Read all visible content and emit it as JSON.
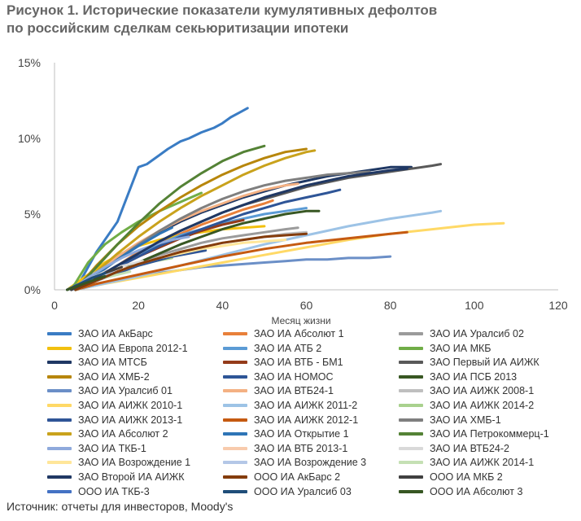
{
  "header": {
    "title_line1": "Рисунок 1. Исторические показатели кумулятивных дефолтов",
    "title_line2": "по российским сделкам секьюритизации ипотеки"
  },
  "footer": {
    "source": "Источник: отчеты для инвесторов, Moody's"
  },
  "chart_data": {
    "type": "line",
    "xlabel": "Месяц жизни",
    "ylabel": "",
    "xlim": [
      0,
      120
    ],
    "ylim": [
      0,
      0.15
    ],
    "xticks": [
      0,
      20,
      40,
      60,
      80,
      100,
      120
    ],
    "xtick_labels": [
      "0",
      "20",
      "40",
      "60",
      "80",
      "100",
      "120"
    ],
    "yticks": [
      0,
      0.05,
      0.1,
      0.15
    ],
    "ytick_labels": [
      "0%",
      "5%",
      "10%",
      "15%"
    ],
    "grid": false,
    "legend_position": "bottom",
    "series": [
      {
        "name": "ЗАО ИА АкБарс",
        "color": "#3a7cc4",
        "x": [
          5,
          10,
          15,
          20,
          22,
          25,
          27,
          30,
          32,
          35,
          38,
          40,
          42,
          44,
          46
        ],
        "y": [
          0,
          0.025,
          0.045,
          0.081,
          0.083,
          0.089,
          0.093,
          0.098,
          0.1,
          0.104,
          0.107,
          0.11,
          0.114,
          0.117,
          0.12
        ]
      },
      {
        "name": "ЗАО ИА Абсолют 1",
        "color": "#e8803a",
        "x": [
          5,
          10,
          15,
          20,
          25,
          30,
          35,
          40,
          45,
          50,
          52
        ],
        "y": [
          0,
          0.008,
          0.016,
          0.025,
          0.031,
          0.037,
          0.043,
          0.048,
          0.053,
          0.057,
          0.059
        ]
      },
      {
        "name": "ЗАО ИА Уралсиб 02",
        "color": "#9b9b9b",
        "x": [
          5,
          10,
          15,
          20,
          25,
          30,
          35,
          40,
          45,
          50,
          55,
          58
        ],
        "y": [
          0,
          0.006,
          0.012,
          0.018,
          0.023,
          0.027,
          0.031,
          0.034,
          0.036,
          0.038,
          0.04,
          0.041
        ]
      },
      {
        "name": "ЗАО ИА Европа 2012-1",
        "color": "#f2c00e",
        "x": [
          3,
          8,
          12,
          16,
          20,
          25,
          30,
          35,
          40,
          45,
          50
        ],
        "y": [
          0,
          0.01,
          0.018,
          0.024,
          0.029,
          0.033,
          0.036,
          0.038,
          0.04,
          0.041,
          0.042
        ]
      },
      {
        "name": "ЗАО ИА АТБ 2",
        "color": "#5b9bd5",
        "x": [
          4,
          10,
          15,
          20,
          25,
          30,
          35,
          40,
          45,
          50,
          55,
          60
        ],
        "y": [
          0,
          0.008,
          0.016,
          0.024,
          0.03,
          0.036,
          0.04,
          0.044,
          0.047,
          0.05,
          0.052,
          0.054
        ]
      },
      {
        "name": "ЗАО ИА МКБ",
        "color": "#70ad47",
        "x": [
          4,
          8,
          12,
          16,
          20,
          25,
          30,
          35
        ],
        "y": [
          0,
          0.018,
          0.03,
          0.038,
          0.045,
          0.052,
          0.058,
          0.064
        ]
      },
      {
        "name": "ЗАО ИА МТСБ",
        "color": "#1f3864",
        "x": [
          5,
          10,
          15,
          20,
          25,
          30,
          35,
          40,
          45,
          50,
          55,
          60,
          65,
          70,
          75,
          80,
          85
        ],
        "y": [
          0,
          0.01,
          0.02,
          0.03,
          0.038,
          0.045,
          0.051,
          0.056,
          0.061,
          0.065,
          0.069,
          0.072,
          0.075,
          0.077,
          0.079,
          0.081,
          0.081
        ]
      },
      {
        "name": "ЗАО ИА ВТБ - БМ1",
        "color": "#943b1a",
        "x": [
          5,
          10,
          15,
          20,
          25,
          30,
          35,
          40,
          45
        ],
        "y": [
          0,
          0.008,
          0.015,
          0.022,
          0.028,
          0.034,
          0.039,
          0.043,
          0.046
        ]
      },
      {
        "name": "ЗАО Первый ИА АИЖК",
        "color": "#595959",
        "x": [
          5,
          10,
          15,
          20,
          25,
          30,
          35,
          40,
          45,
          50,
          55,
          60,
          65,
          70,
          75,
          80,
          85,
          90,
          92
        ],
        "y": [
          0,
          0.008,
          0.016,
          0.024,
          0.032,
          0.039,
          0.045,
          0.051,
          0.056,
          0.06,
          0.064,
          0.068,
          0.071,
          0.074,
          0.076,
          0.078,
          0.08,
          0.082,
          0.083
        ]
      },
      {
        "name": "ЗАО ИА ХМБ-2",
        "color": "#b7860b",
        "x": [
          5,
          10,
          15,
          20,
          25,
          30,
          35,
          40,
          45,
          50,
          55,
          60
        ],
        "y": [
          0,
          0.016,
          0.03,
          0.042,
          0.052,
          0.061,
          0.069,
          0.076,
          0.082,
          0.087,
          0.091,
          0.093
        ]
      },
      {
        "name": "ЗАО ИА НОМОС",
        "color": "#2e5597",
        "x": [
          5,
          10,
          15,
          20,
          25,
          30,
          35,
          40,
          45,
          50,
          55,
          60,
          65,
          68
        ],
        "y": [
          0,
          0.008,
          0.015,
          0.022,
          0.029,
          0.035,
          0.04,
          0.045,
          0.05,
          0.054,
          0.058,
          0.061,
          0.064,
          0.066
        ]
      },
      {
        "name": "ЗАО ИА ПСБ 2013",
        "color": "#385723",
        "x": [
          5,
          10,
          15,
          20,
          25,
          30,
          35,
          40,
          45,
          50,
          55,
          60,
          63
        ],
        "y": [
          0,
          0.006,
          0.012,
          0.018,
          0.024,
          0.03,
          0.035,
          0.04,
          0.044,
          0.047,
          0.05,
          0.052,
          0.052
        ]
      },
      {
        "name": "ЗАО ИА Уралсиб 01",
        "color": "#6b8fc7",
        "x": [
          5,
          10,
          15,
          20,
          25,
          30,
          35,
          40,
          45,
          50,
          55,
          60,
          65,
          70,
          75,
          80
        ],
        "y": [
          0,
          0.003,
          0.006,
          0.009,
          0.011,
          0.013,
          0.015,
          0.016,
          0.017,
          0.018,
          0.019,
          0.02,
          0.02,
          0.021,
          0.021,
          0.022
        ]
      },
      {
        "name": "ЗАО ИА ВТБ24-1",
        "color": "#f4b183",
        "x": [
          5,
          10,
          15,
          20,
          25,
          30,
          35,
          40,
          45,
          50,
          55,
          58
        ],
        "y": [
          0,
          0.012,
          0.022,
          0.031,
          0.039,
          0.046,
          0.052,
          0.057,
          0.062,
          0.066,
          0.069,
          0.07
        ]
      },
      {
        "name": "ЗАО ИА АИЖК 2008-1",
        "color": "#bfbfbf",
        "x": [
          5,
          10,
          15,
          20,
          25,
          30,
          35,
          40,
          45,
          50,
          55,
          60
        ],
        "y": [
          0,
          0.006,
          0.012,
          0.017,
          0.021,
          0.025,
          0.028,
          0.031,
          0.033,
          0.035,
          0.037,
          0.038
        ]
      },
      {
        "name": "ЗАО ИА АИЖК 2010-1",
        "color": "#ffd966",
        "x": [
          5,
          10,
          20,
          30,
          40,
          50,
          60,
          70,
          80,
          90,
          100,
          107
        ],
        "y": [
          0,
          0.003,
          0.008,
          0.013,
          0.018,
          0.023,
          0.028,
          0.033,
          0.037,
          0.04,
          0.043,
          0.044
        ]
      },
      {
        "name": "ЗАО ИА АИЖК 2011-2",
        "color": "#9dc3e6",
        "x": [
          5,
          10,
          20,
          30,
          40,
          50,
          60,
          70,
          80,
          90,
          92
        ],
        "y": [
          0,
          0.003,
          0.009,
          0.016,
          0.023,
          0.03,
          0.036,
          0.042,
          0.047,
          0.051,
          0.052
        ]
      },
      {
        "name": "ЗАО ИА АИЖК 2014-2",
        "color": "#a9d18e",
        "x": [
          3,
          8,
          12,
          16,
          20,
          24,
          28
        ],
        "y": [
          0,
          0.005,
          0.009,
          0.013,
          0.016,
          0.019,
          0.021
        ]
      },
      {
        "name": "ЗАО ИА АИЖК 2013-1",
        "color": "#2f5597",
        "x": [
          4,
          8,
          12,
          16,
          20,
          24,
          28,
          32,
          36
        ],
        "y": [
          0,
          0.004,
          0.008,
          0.012,
          0.016,
          0.019,
          0.022,
          0.024,
          0.026
        ]
      },
      {
        "name": "ЗАО ИА АИЖК 2012-1",
        "color": "#c55a11",
        "x": [
          5,
          10,
          20,
          30,
          40,
          50,
          60,
          70,
          80,
          84
        ],
        "y": [
          0,
          0.004,
          0.01,
          0.016,
          0.022,
          0.027,
          0.031,
          0.034,
          0.037,
          0.038
        ]
      },
      {
        "name": "ЗАО ИА ХМБ-1",
        "color": "#7f7f7f",
        "x": [
          5,
          10,
          15,
          20,
          25,
          30,
          35,
          40,
          45,
          50,
          55,
          60,
          65,
          70,
          75
        ],
        "y": [
          0,
          0.01,
          0.02,
          0.03,
          0.039,
          0.047,
          0.054,
          0.06,
          0.065,
          0.069,
          0.072,
          0.074,
          0.076,
          0.077,
          0.078
        ]
      },
      {
        "name": "ЗАО ИА Абсолют 2",
        "color": "#c9a21c",
        "x": [
          5,
          10,
          15,
          20,
          25,
          30,
          35,
          40,
          45,
          50,
          55,
          60,
          62
        ],
        "y": [
          0,
          0.012,
          0.024,
          0.035,
          0.045,
          0.054,
          0.062,
          0.069,
          0.076,
          0.082,
          0.087,
          0.091,
          0.092
        ]
      },
      {
        "name": "ЗАО ИА Открытие 1",
        "color": "#2e75b6",
        "x": [
          5,
          10,
          15,
          20,
          25,
          28
        ],
        "y": [
          0,
          0.01,
          0.02,
          0.029,
          0.037,
          0.041
        ]
      },
      {
        "name": "ЗАО ИА Петрокоммерц-1",
        "color": "#548235",
        "x": [
          5,
          10,
          15,
          20,
          25,
          30,
          35,
          40,
          45,
          50
        ],
        "y": [
          0,
          0.015,
          0.03,
          0.044,
          0.057,
          0.068,
          0.077,
          0.085,
          0.091,
          0.095
        ]
      },
      {
        "name": "ЗАО ИА ТКБ-1",
        "color": "#8faadc",
        "x": [
          4,
          8,
          12,
          16,
          20,
          24,
          28,
          32
        ],
        "y": [
          0,
          0.008,
          0.015,
          0.021,
          0.026,
          0.03,
          0.033,
          0.035
        ]
      },
      {
        "name": "ЗАО ИА ВТБ 2013-1",
        "color": "#f8cbad",
        "x": [
          3,
          6,
          9,
          12,
          15,
          18
        ],
        "y": [
          0,
          0.004,
          0.008,
          0.011,
          0.013,
          0.015
        ]
      },
      {
        "name": "ЗАО ИА ВТБ24-2",
        "color": "#d9d9d9",
        "x": [
          3,
          6,
          9,
          12,
          15,
          18,
          21
        ],
        "y": [
          0,
          0.004,
          0.008,
          0.012,
          0.015,
          0.017,
          0.019
        ]
      },
      {
        "name": "ЗАО ИА Возрождение 1",
        "color": "#ffe699",
        "x": [
          5,
          10,
          15,
          20,
          25,
          30,
          35,
          40,
          45,
          50,
          55
        ],
        "y": [
          0,
          0.006,
          0.012,
          0.017,
          0.021,
          0.024,
          0.027,
          0.029,
          0.031,
          0.032,
          0.033
        ]
      },
      {
        "name": "ЗАО ИА Возрождение 3",
        "color": "#b4c7e7",
        "x": [
          3,
          6,
          9,
          12,
          15
        ],
        "y": [
          0,
          0.004,
          0.007,
          0.01,
          0.012
        ]
      },
      {
        "name": "ЗАО ИА АИЖК 2014-1",
        "color": "#c5e0b4",
        "x": [
          3,
          6,
          9,
          12,
          15,
          18
        ],
        "y": [
          0,
          0.003,
          0.006,
          0.008,
          0.01,
          0.012
        ]
      },
      {
        "name": "ЗАО Второй ИА АИЖК",
        "color": "#203864",
        "x": [
          5,
          10,
          15,
          20,
          25,
          30,
          35,
          40,
          45,
          50,
          55,
          60,
          65,
          70,
          75,
          80,
          84
        ],
        "y": [
          0,
          0.008,
          0.016,
          0.024,
          0.032,
          0.039,
          0.045,
          0.051,
          0.056,
          0.061,
          0.065,
          0.069,
          0.072,
          0.075,
          0.077,
          0.079,
          0.08
        ]
      },
      {
        "name": "ООО ИА АкБарс 2",
        "color": "#843c0c",
        "x": [
          5,
          10,
          15,
          20,
          25,
          30,
          35,
          40,
          45,
          50,
          55,
          60
        ],
        "y": [
          0,
          0.006,
          0.012,
          0.017,
          0.021,
          0.025,
          0.028,
          0.031,
          0.033,
          0.035,
          0.036,
          0.037
        ]
      },
      {
        "name": "ООО ИА МКБ 2",
        "color": "#404040",
        "x": [
          4,
          8,
          12,
          16
        ],
        "y": [
          0,
          0.006,
          0.011,
          0.015
        ]
      },
      {
        "name": "ООО ИА ТКБ-3",
        "color": "#4472c4",
        "x": [
          3,
          6,
          9
        ],
        "y": [
          0,
          0.004,
          0.007
        ]
      },
      {
        "name": "ООО ИА Уралсиб 03",
        "color": "#1f4e79",
        "x": [
          3,
          6,
          9,
          12
        ],
        "y": [
          0,
          0.004,
          0.008,
          0.011
        ]
      },
      {
        "name": "ООО ИА Абсолют 3",
        "color": "#375623",
        "x": [
          3,
          6,
          9,
          12
        ],
        "y": [
          0,
          0.003,
          0.006,
          0.009
        ]
      }
    ]
  }
}
